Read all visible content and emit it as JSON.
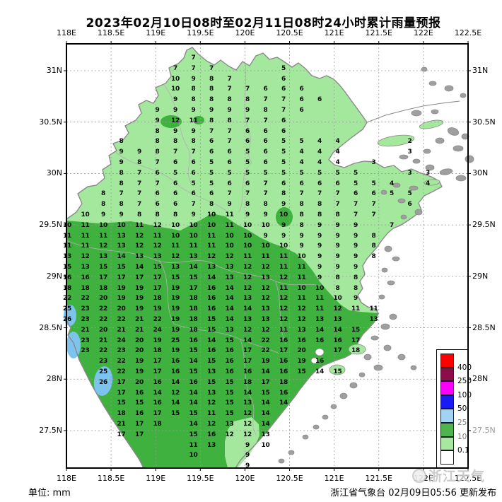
{
  "title": "2023年02月10日08时至02月11日08时24小时累计雨量预报",
  "axis": {
    "lon_labels": [
      "118E",
      "118.5E",
      "119E",
      "119.5E",
      "120E",
      "120.5E",
      "121E",
      "121.5E",
      "122E",
      "122.5E"
    ],
    "lat_labels": [
      "31N",
      "30.5N",
      "30N",
      "29.5N",
      "29N",
      "28.5N",
      "28N",
      "27.5N"
    ]
  },
  "legend": {
    "labels": [
      "400",
      "250",
      "100",
      "50",
      "25",
      "10",
      "0.1"
    ],
    "gray_labels": [
      "25",
      "10"
    ],
    "colors": [
      "#fb0000",
      "#8c0d4a",
      "#fb00fb",
      "#1a1af5",
      "#a3d3f3",
      "#4fb44f",
      "#a6e8a0",
      "#ffffff"
    ]
  },
  "footer": {
    "unit_label": "单位: mm",
    "issuer": "浙江省气象台 02月09日05:56 更新发布"
  },
  "watermark": "浙江天气",
  "colors": {
    "rain_light_green": "#a4e89e",
    "rain_mid_green": "#3eb13e",
    "rain_light_blue": "#7cc4ee",
    "coast_gray": "#8a8a8a",
    "island_gray": "#9f9f9f",
    "grid_gray": "#9a9a9a"
  },
  "chart_data": {
    "type": "heatmap",
    "title": "2023年02月10日08时至02月11日08时24小时累计雨量预报",
    "unit": "mm",
    "lon_ticks": [
      118,
      118.5,
      119,
      119.5,
      120,
      120.5,
      121,
      121.5,
      122,
      122.5
    ],
    "lat_ticks": [
      31,
      30.5,
      30,
      29.5,
      29,
      28.5,
      28,
      27.5
    ],
    "legend_thresholds": [
      400,
      250,
      100,
      50,
      25,
      10,
      0.1
    ],
    "grid_rows": [
      {
        "r": 0,
        "v": {
          "7": 7
        }
      },
      {
        "r": 1,
        "v": {
          "6": 7,
          "7": 7,
          "8": 7,
          "12": 5
        }
      },
      {
        "r": 2,
        "v": {
          "6": 10,
          "7": 9,
          "8": 8,
          "9": 7,
          "12": 6
        }
      },
      {
        "r": 3,
        "v": {
          "6": 10,
          "7": 8,
          "8": 8,
          "9": 7,
          "10": 7,
          "11": 6,
          "12": 6,
          "13": 6
        }
      },
      {
        "r": 4,
        "v": {
          "6": 9,
          "7": 8,
          "8": 8,
          "9": 8,
          "10": 8,
          "11": 7,
          "12": 7,
          "13": 6,
          "14": 6
        }
      },
      {
        "r": 5,
        "v": {
          "5": 9,
          "6": 9,
          "7": 9,
          "8": 9,
          "9": 9,
          "10": 9,
          "11": 8,
          "12": 7,
          "13": 6
        }
      },
      {
        "r": 6,
        "v": {
          "5": 9,
          "6": 12,
          "7": 11,
          "8": 8,
          "9": 8,
          "10": 7,
          "11": 7,
          "12": 6
        }
      },
      {
        "r": 7,
        "v": {
          "5": 8,
          "6": 9,
          "7": 9,
          "8": 7,
          "9": 7,
          "10": 6,
          "11": 6,
          "12": 6
        }
      },
      {
        "r": 8,
        "v": {
          "3": 8,
          "5": 8,
          "6": 8,
          "7": 8,
          "8": 6,
          "9": 7,
          "10": 6,
          "11": 6,
          "12": 5,
          "13": 5,
          "14": 4,
          "15": 4,
          "19": 2
        }
      },
      {
        "r": 9,
        "v": {
          "3": 9,
          "4": 9,
          "5": 8,
          "6": 7,
          "7": 7,
          "8": 6,
          "9": 6,
          "10": 5,
          "11": 6,
          "12": 5,
          "13": 4,
          "14": 4,
          "15": 4,
          "19": 3
        }
      },
      {
        "r": 10,
        "v": {
          "3": 9,
          "4": 8,
          "5": 7,
          "6": 6,
          "7": 6,
          "8": 5,
          "9": 6,
          "10": 5,
          "11": 6,
          "12": 5,
          "13": 4,
          "14": 4,
          "15": 4,
          "17": 3
        }
      },
      {
        "r": 11,
        "v": {
          "3": 8,
          "4": 7,
          "5": 6,
          "6": 5,
          "7": 6,
          "8": 5,
          "9": 5,
          "10": 5,
          "11": 5,
          "12": 5,
          "13": 5,
          "14": 5,
          "15": 5,
          "16": 5,
          "19": 3,
          "20": 3
        }
      },
      {
        "r": 12,
        "v": {
          "3": 8,
          "4": 7,
          "5": 7,
          "6": 6,
          "7": 5,
          "8": 5,
          "9": 6,
          "10": 6,
          "11": 7,
          "12": 6,
          "13": 6,
          "14": 6,
          "15": 6,
          "16": 5,
          "17": 5,
          "18": 4,
          "20": 4
        }
      },
      {
        "r": 13,
        "v": {
          "2": 8,
          "3": 7,
          "4": 7,
          "5": 6,
          "6": 6,
          "7": 6,
          "8": 6,
          "9": 7,
          "10": 7,
          "11": 7,
          "12": 8,
          "13": 7,
          "14": 7,
          "15": 7,
          "16": 6,
          "17": 6,
          "18": 5,
          "19": 5
        }
      },
      {
        "r": 14,
        "v": {
          "2": 8,
          "3": 8,
          "4": 7,
          "5": 6,
          "6": 6,
          "7": 7,
          "8": 8,
          "9": 9,
          "10": 8,
          "11": 8,
          "12": 9,
          "13": 8,
          "14": 8,
          "15": 7,
          "16": 7,
          "17": 7,
          "19": 6
        }
      },
      {
        "r": 15,
        "v": {
          "1": 10,
          "2": 9,
          "3": 9,
          "4": 8,
          "5": 8,
          "6": 8,
          "7": 9,
          "8": 10,
          "9": 11,
          "10": 9,
          "11": 9,
          "12": 10,
          "13": 8,
          "14": 8,
          "15": 8,
          "16": 7,
          "17": 7
        }
      },
      {
        "r": 16,
        "v": {
          "0": 10,
          "1": 11,
          "2": 10,
          "3": 10,
          "4": 11,
          "5": 12,
          "6": 10,
          "7": 10,
          "8": 10,
          "9": 11,
          "10": 10,
          "11": 10,
          "12": 9,
          "13": 8,
          "14": 9,
          "15": 9,
          "16": 9,
          "18": 7
        }
      },
      {
        "r": 17,
        "v": {
          "0": 11,
          "1": 11,
          "2": 11,
          "3": 13,
          "4": 12,
          "5": 11,
          "6": 10,
          "7": 10,
          "8": 11,
          "9": 10,
          "10": 10,
          "11": 9,
          "12": 9,
          "13": 9,
          "14": 9,
          "15": 9,
          "16": 9,
          "17": 8
        }
      },
      {
        "r": 18,
        "v": {
          "0": 11,
          "1": 11,
          "2": 12,
          "3": 13,
          "4": 12,
          "5": 12,
          "6": 11,
          "7": 11,
          "8": 11,
          "9": 10,
          "10": 10,
          "11": 10,
          "12": 10,
          "13": 9,
          "14": 9,
          "15": 9,
          "16": 9,
          "17": 8
        }
      },
      {
        "r": 19,
        "v": {
          "0": 13,
          "1": 12,
          "2": 13,
          "3": 14,
          "4": 13,
          "5": 13,
          "6": 12,
          "7": 13,
          "8": 12,
          "9": 12,
          "10": 11,
          "11": 11,
          "12": 11,
          "13": 10,
          "14": 9,
          "15": 9,
          "16": 9,
          "17": 8
        }
      },
      {
        "r": 20,
        "v": {
          "0": 15,
          "1": 13,
          "2": 15,
          "3": 15,
          "4": 14,
          "5": 15,
          "6": 13,
          "7": 14,
          "8": 13,
          "9": 13,
          "10": 12,
          "11": 12,
          "12": 11,
          "13": 11,
          "14": 9,
          "15": 9,
          "16": 9
        }
      },
      {
        "r": 21,
        "v": {
          "0": 16,
          "1": 16,
          "2": 17,
          "3": 17,
          "4": 17,
          "5": 17,
          "6": 15,
          "7": 15,
          "8": 14,
          "9": 13,
          "10": 12,
          "11": 13,
          "12": 12,
          "13": 11,
          "14": 9,
          "15": 8,
          "16": 8
        }
      },
      {
        "r": 22,
        "v": {
          "0": 18,
          "1": 18,
          "2": 18,
          "3": 19,
          "4": 19,
          "5": 17,
          "6": 19,
          "7": 17,
          "8": 16,
          "9": 14,
          "10": 12,
          "11": 12,
          "12": 11,
          "13": 10,
          "14": 10,
          "15": 8,
          "16": 8
        }
      },
      {
        "r": 23,
        "v": {
          "0": 22,
          "1": 22,
          "2": 20,
          "3": 19,
          "4": 19,
          "5": 18,
          "6": 19,
          "7": 18,
          "8": 16,
          "9": 14,
          "10": 13,
          "11": 12,
          "12": 12,
          "13": 11,
          "14": 11,
          "15": 10,
          "16": 9
        }
      },
      {
        "r": 24,
        "v": {
          "0": 25,
          "1": 23,
          "2": 22,
          "3": 20,
          "4": 19,
          "5": 19,
          "6": 19,
          "7": 18,
          "8": 16,
          "9": 14,
          "10": 14,
          "11": 13,
          "12": 12,
          "13": 12,
          "14": 11,
          "15": 12,
          "16": 11,
          "17": 11
        }
      },
      {
        "r": 25,
        "v": {
          "0": 26,
          "1": 23,
          "2": 22,
          "3": 22,
          "4": 21,
          "5": 22,
          "6": 19,
          "7": 18,
          "8": 15,
          "9": 14,
          "10": 13,
          "11": 13,
          "12": 12,
          "13": 12,
          "14": 13,
          "15": 13,
          "17": 13
        }
      },
      {
        "r": 26,
        "v": {
          "1": 21,
          "2": 20,
          "3": 21,
          "4": 21,
          "5": 24,
          "6": 19,
          "7": 18,
          "8": 15,
          "9": 13,
          "10": 12,
          "11": 12,
          "12": 11,
          "13": 13,
          "14": 14,
          "15": 14,
          "16": 15
        }
      },
      {
        "r": 27,
        "v": {
          "1": 23,
          "2": 21,
          "3": 24,
          "4": 20,
          "5": 19,
          "6": 25,
          "7": 16,
          "8": 14,
          "9": 15,
          "10": 14,
          "11": 22,
          "12": 16,
          "13": 16,
          "14": 16,
          "15": 16,
          "16": 17
        }
      },
      {
        "r": 28,
        "v": {
          "1": 23,
          "2": 22,
          "3": 23,
          "4": 20,
          "5": 18,
          "6": 19,
          "7": 15,
          "8": 16,
          "9": 16,
          "10": 17,
          "11": 22,
          "12": 17,
          "13": 20,
          "15": 17,
          "16": 18
        }
      },
      {
        "r": 29,
        "v": {
          "2": 23,
          "3": 22,
          "4": 19,
          "5": 17,
          "6": 16,
          "7": 14,
          "8": 15,
          "9": 16,
          "10": 17,
          "11": 19,
          "12": 16,
          "13": 19,
          "14": 16
        }
      },
      {
        "r": 30,
        "v": {
          "2": 25,
          "3": 22,
          "4": 19,
          "5": 17,
          "6": 16,
          "7": 15,
          "8": 13,
          "9": 16,
          "10": 16,
          "11": 14,
          "12": 16,
          "13": 15,
          "14": 14,
          "15": 15
        }
      },
      {
        "r": 31,
        "v": {
          "2": 26,
          "3": 17,
          "4": 20,
          "5": 16,
          "6": 14,
          "7": 16,
          "8": 15,
          "9": 15,
          "10": 18,
          "11": 17,
          "12": 18
        }
      },
      {
        "r": 32,
        "v": {
          "3": 17,
          "4": 16,
          "5": 14,
          "6": 12,
          "7": 14,
          "8": 13,
          "9": 15,
          "10": 14,
          "11": 15,
          "12": 16
        }
      },
      {
        "r": 33,
        "v": {
          "3": 15,
          "4": 15,
          "5": 16,
          "6": 14,
          "7": 14,
          "8": 12,
          "9": 15,
          "10": 13,
          "11": 14,
          "12": 14
        }
      },
      {
        "r": 34,
        "v": {
          "3": 18,
          "4": 16,
          "5": 17,
          "6": 15,
          "7": 15,
          "8": 11,
          "9": 15,
          "10": 12,
          "11": 14
        }
      },
      {
        "r": 35,
        "v": {
          "3": 21,
          "4": 17,
          "5": 18,
          "7": 14,
          "8": 12,
          "9": 13,
          "10": 12,
          "11": 14
        }
      },
      {
        "r": 36,
        "v": {
          "3": 17,
          "4": 17,
          "7": 15,
          "8": 16,
          "9": 12,
          "10": 12,
          "11": 13
        }
      },
      {
        "r": 37,
        "v": {
          "7": 11,
          "8": 13,
          "10": 9,
          "11": 10
        }
      },
      {
        "r": 38,
        "v": {
          "7": 10,
          "10": 9
        }
      },
      {
        "r": 39,
        "v": {
          "10": 9
        }
      }
    ]
  }
}
